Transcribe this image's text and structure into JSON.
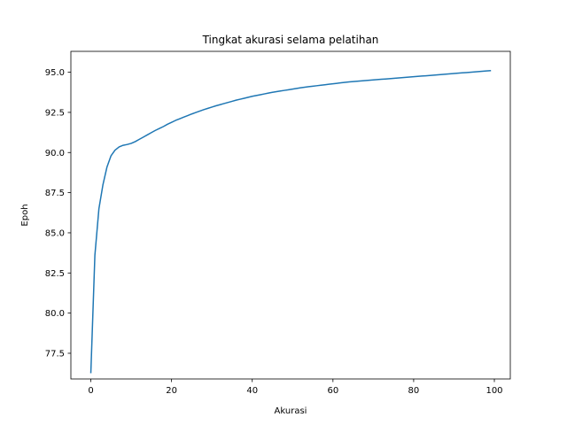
{
  "chart_data": {
    "type": "line",
    "title": "Tingkat akurasi selama pelatihan",
    "xlabel": "Akurasi",
    "ylabel": "Epoh",
    "xlim": [
      -4.95,
      103.95
    ],
    "ylim": [
      75.9,
      96.3
    ],
    "xticks": [
      0,
      20,
      40,
      60,
      80,
      100
    ],
    "yticks": [
      77.5,
      80.0,
      82.5,
      85.0,
      87.5,
      90.0,
      92.5,
      95.0
    ],
    "grid": false,
    "colors": {
      "line": "#1f77b4"
    },
    "series": [
      {
        "x": [
          0,
          1,
          2,
          3,
          4,
          5,
          6,
          7,
          8,
          9,
          10,
          11,
          12,
          13,
          14,
          15,
          16,
          17,
          18,
          19,
          20,
          21,
          22,
          23,
          24,
          25,
          26,
          27,
          28,
          29,
          30,
          31,
          32,
          33,
          34,
          35,
          36,
          37,
          38,
          39,
          40,
          41,
          42,
          43,
          44,
          45,
          46,
          47,
          48,
          49,
          50,
          51,
          52,
          53,
          54,
          55,
          56,
          57,
          58,
          59,
          60,
          61,
          62,
          63,
          64,
          65,
          66,
          67,
          68,
          69,
          70,
          71,
          72,
          73,
          74,
          75,
          76,
          77,
          78,
          79,
          80,
          81,
          82,
          83,
          84,
          85,
          86,
          87,
          88,
          89,
          90,
          91,
          92,
          93,
          94,
          95,
          96,
          97,
          98,
          99
        ],
        "y": [
          76.3,
          83.6,
          86.5,
          88.0,
          89.1,
          89.8,
          90.15,
          90.35,
          90.45,
          90.5,
          90.57,
          90.68,
          90.82,
          90.96,
          91.1,
          91.24,
          91.38,
          91.5,
          91.62,
          91.76,
          91.88,
          92.0,
          92.1,
          92.2,
          92.3,
          92.4,
          92.49,
          92.58,
          92.67,
          92.75,
          92.83,
          92.91,
          92.98,
          93.05,
          93.12,
          93.19,
          93.26,
          93.32,
          93.38,
          93.44,
          93.5,
          93.55,
          93.6,
          93.65,
          93.7,
          93.75,
          93.79,
          93.83,
          93.87,
          93.91,
          93.95,
          93.99,
          94.03,
          94.07,
          94.1,
          94.13,
          94.16,
          94.19,
          94.22,
          94.25,
          94.28,
          94.31,
          94.34,
          94.37,
          94.4,
          94.42,
          94.44,
          94.46,
          94.48,
          94.5,
          94.52,
          94.54,
          94.56,
          94.58,
          94.6,
          94.62,
          94.64,
          94.66,
          94.68,
          94.7,
          94.72,
          94.74,
          94.76,
          94.78,
          94.8,
          94.82,
          94.84,
          94.86,
          94.88,
          94.9,
          94.92,
          94.94,
          94.96,
          94.98,
          95.0,
          95.02,
          95.04,
          95.06,
          95.08,
          95.1
        ]
      }
    ]
  }
}
